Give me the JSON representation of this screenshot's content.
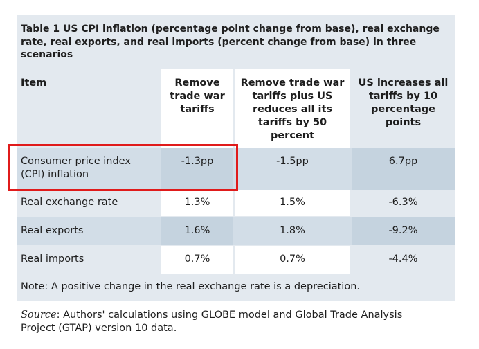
{
  "table": {
    "caption": "Table 1 US CPI inflation (percentage point change from base), real exchange rate, real exports, and real imports (percent change from base) in three scenarios",
    "headers": {
      "item": "Item",
      "col1_line1": "Remove",
      "col1_line2": "trade war",
      "col1_line3": "tariffs",
      "col2_line1": "Remove trade war",
      "col2_line2": "tariffs plus US",
      "col2_line3": "reduces all its",
      "col2_line4": "tariffs by 50",
      "col2_line5": "percent",
      "col3_line1": "US increases all",
      "col3_line2": "tariffs by 10",
      "col3_line3": "percentage",
      "col3_line4": "points"
    },
    "rows": [
      {
        "label_line1": "Consumer price index",
        "label_line2": "(CPI) inflation",
        "v1": "-1.3pp",
        "v2": "-1.5pp",
        "v3": "6.7pp"
      },
      {
        "label": "Real exchange rate",
        "v1": "1.3%",
        "v2": "1.5%",
        "v3": "-6.3%"
      },
      {
        "label": "Real exports",
        "v1": "1.6%",
        "v2": "1.8%",
        "v3": "-9.2%"
      },
      {
        "label": "Real imports",
        "v1": "0.7%",
        "v2": "0.7%",
        "v3": "-4.4%"
      }
    ],
    "note": "Note: A positive change in the real exchange rate is a depreciation."
  },
  "source": {
    "label": "Source",
    "text_line1": ": Authors' calculations using GLOBE model and Global Trade Analysis",
    "text_line2": "Project (GTAP) version 10 data."
  },
  "colors": {
    "panel": "#e3e9ef",
    "band": "#d2dde7",
    "band_shade": "#c5d3df",
    "highlight": "#e01b1b"
  }
}
